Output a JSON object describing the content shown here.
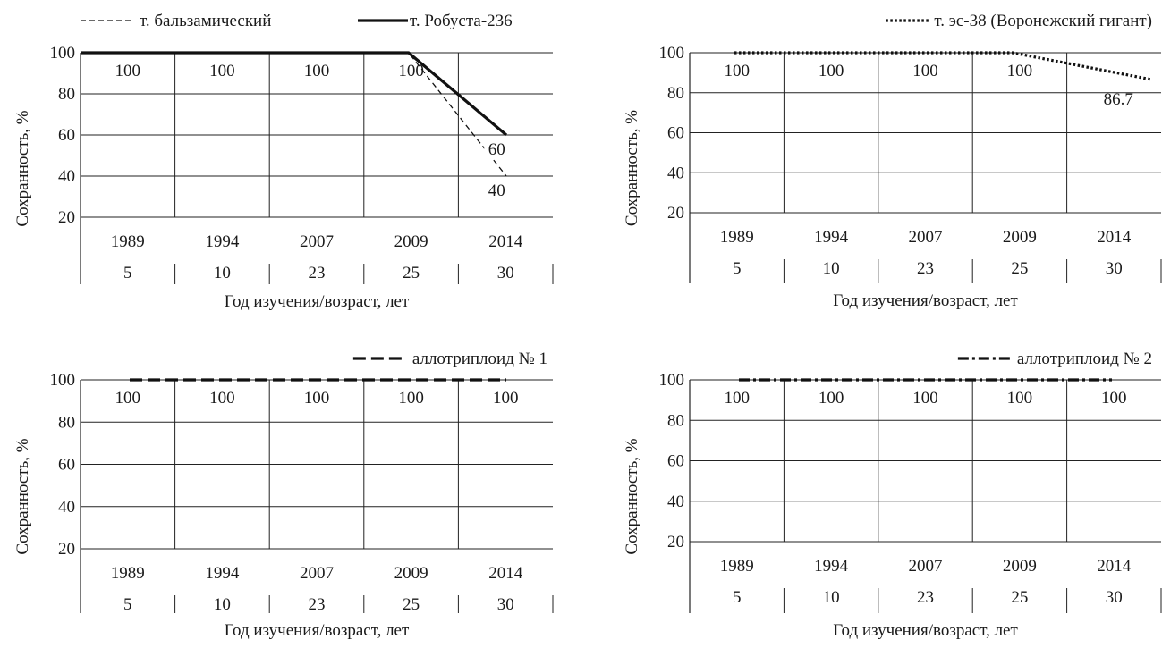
{
  "chart_data": [
    {
      "type": "line",
      "x": [
        "1989",
        "1994",
        "2007",
        "2009",
        "2014"
      ],
      "x_secondary": [
        "5",
        "10",
        "23",
        "25",
        "30"
      ],
      "xlabel": "Год изучения/возраст, лет",
      "ylabel": "Сохранность, %",
      "ylim": [
        20,
        100
      ],
      "yticks": [
        20,
        40,
        60,
        80,
        100
      ],
      "grid": true,
      "legend_position": "top",
      "series": [
        {
          "name": "т. бальзамический",
          "style": "dashed-thin",
          "values": [
            100,
            100,
            100,
            100,
            40
          ]
        },
        {
          "name": "т. Робуста-236",
          "style": "solid-thick",
          "values": [
            100,
            100,
            100,
            100,
            60
          ]
        }
      ],
      "data_labels": [
        "100",
        "100",
        "100",
        "100",
        "60",
        "40"
      ]
    },
    {
      "type": "line",
      "x": [
        "1989",
        "1994",
        "2007",
        "2009",
        "2014"
      ],
      "x_secondary": [
        "5",
        "10",
        "23",
        "25",
        "30"
      ],
      "xlabel": "Год изучения/возраст, лет",
      "ylabel": "Сохранность, %",
      "ylim": [
        20,
        100
      ],
      "yticks": [
        20,
        40,
        60,
        80,
        100
      ],
      "grid": true,
      "legend_position": "top-right",
      "series": [
        {
          "name": "т. эс-38 (Воронежский гигант)",
          "style": "dotted",
          "values": [
            100,
            100,
            100,
            100,
            86.7
          ]
        }
      ],
      "data_labels": [
        "100",
        "100",
        "100",
        "100",
        "86.7"
      ]
    },
    {
      "type": "line",
      "x": [
        "1989",
        "1994",
        "2007",
        "2009",
        "2014"
      ],
      "x_secondary": [
        "5",
        "10",
        "23",
        "25",
        "30"
      ],
      "xlabel": "Год изучения/возраст, лет",
      "ylabel": "Сохранность, %",
      "ylim": [
        20,
        100
      ],
      "yticks": [
        20,
        40,
        60,
        80,
        100
      ],
      "grid": true,
      "legend_position": "top-right",
      "series": [
        {
          "name": "аллотриплоид № 1",
          "style": "long-dash",
          "values": [
            100,
            100,
            100,
            100,
            100
          ]
        }
      ],
      "data_labels": [
        "100",
        "100",
        "100",
        "100",
        "100"
      ]
    },
    {
      "type": "line",
      "x": [
        "1989",
        "1994",
        "2007",
        "2009",
        "2014"
      ],
      "x_secondary": [
        "5",
        "10",
        "23",
        "25",
        "30"
      ],
      "xlabel": "Год изучения/возраст, лет",
      "ylabel": "Сохранность, %",
      "ylim": [
        20,
        100
      ],
      "yticks": [
        20,
        40,
        60,
        80,
        100
      ],
      "grid": true,
      "legend_position": "top-right",
      "series": [
        {
          "name": "аллотриплоид № 2",
          "style": "dash-dot",
          "values": [
            100,
            100,
            100,
            100,
            100
          ]
        }
      ],
      "data_labels": [
        "100",
        "100",
        "100",
        "100",
        "100"
      ]
    }
  ]
}
